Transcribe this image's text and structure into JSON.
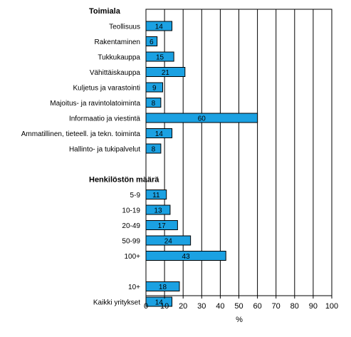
{
  "chart_data": {
    "type": "bar",
    "orientation": "horizontal",
    "title": "",
    "xlabel": "%",
    "ylabel": "",
    "xlim": [
      0,
      100
    ],
    "xticks": [
      0,
      10,
      20,
      30,
      40,
      50,
      60,
      70,
      80,
      90,
      100
    ],
    "grid": true,
    "bar_color": "#1ba1e2",
    "rows": [
      {
        "kind": "group",
        "label": "Toimiala"
      },
      {
        "kind": "bar",
        "label": "Teollisuus",
        "value": 14
      },
      {
        "kind": "bar",
        "label": "Rakentaminen",
        "value": 6
      },
      {
        "kind": "bar",
        "label": "Tukkukauppa",
        "value": 15
      },
      {
        "kind": "bar",
        "label": "Vähittäiskauppa",
        "value": 21
      },
      {
        "kind": "bar",
        "label": "Kuljetus ja varastointi",
        "value": 9
      },
      {
        "kind": "bar",
        "label": "Majoitus- ja ravintolatoiminta",
        "value": 8
      },
      {
        "kind": "bar",
        "label": "Informaatio ja viestintä",
        "value": 60
      },
      {
        "kind": "bar",
        "label": "Ammatillinen, tieteell. ja tekn. toiminta",
        "value": 14
      },
      {
        "kind": "bar",
        "label": "Hallinto- ja tukipalvelut",
        "value": 8
      },
      {
        "kind": "spacer"
      },
      {
        "kind": "group",
        "label": "Henkilöstön määrä"
      },
      {
        "kind": "bar",
        "label": "5-9",
        "value": 11
      },
      {
        "kind": "bar",
        "label": "10-19",
        "value": 13
      },
      {
        "kind": "bar",
        "label": "20-49",
        "value": 17
      },
      {
        "kind": "bar",
        "label": "50-99",
        "value": 24
      },
      {
        "kind": "bar",
        "label": "100+",
        "value": 43
      },
      {
        "kind": "spacer"
      },
      {
        "kind": "bar",
        "label": "10+",
        "value": 18
      },
      {
        "kind": "bar",
        "label": "Kaikki yritykset",
        "value": 14
      }
    ]
  }
}
